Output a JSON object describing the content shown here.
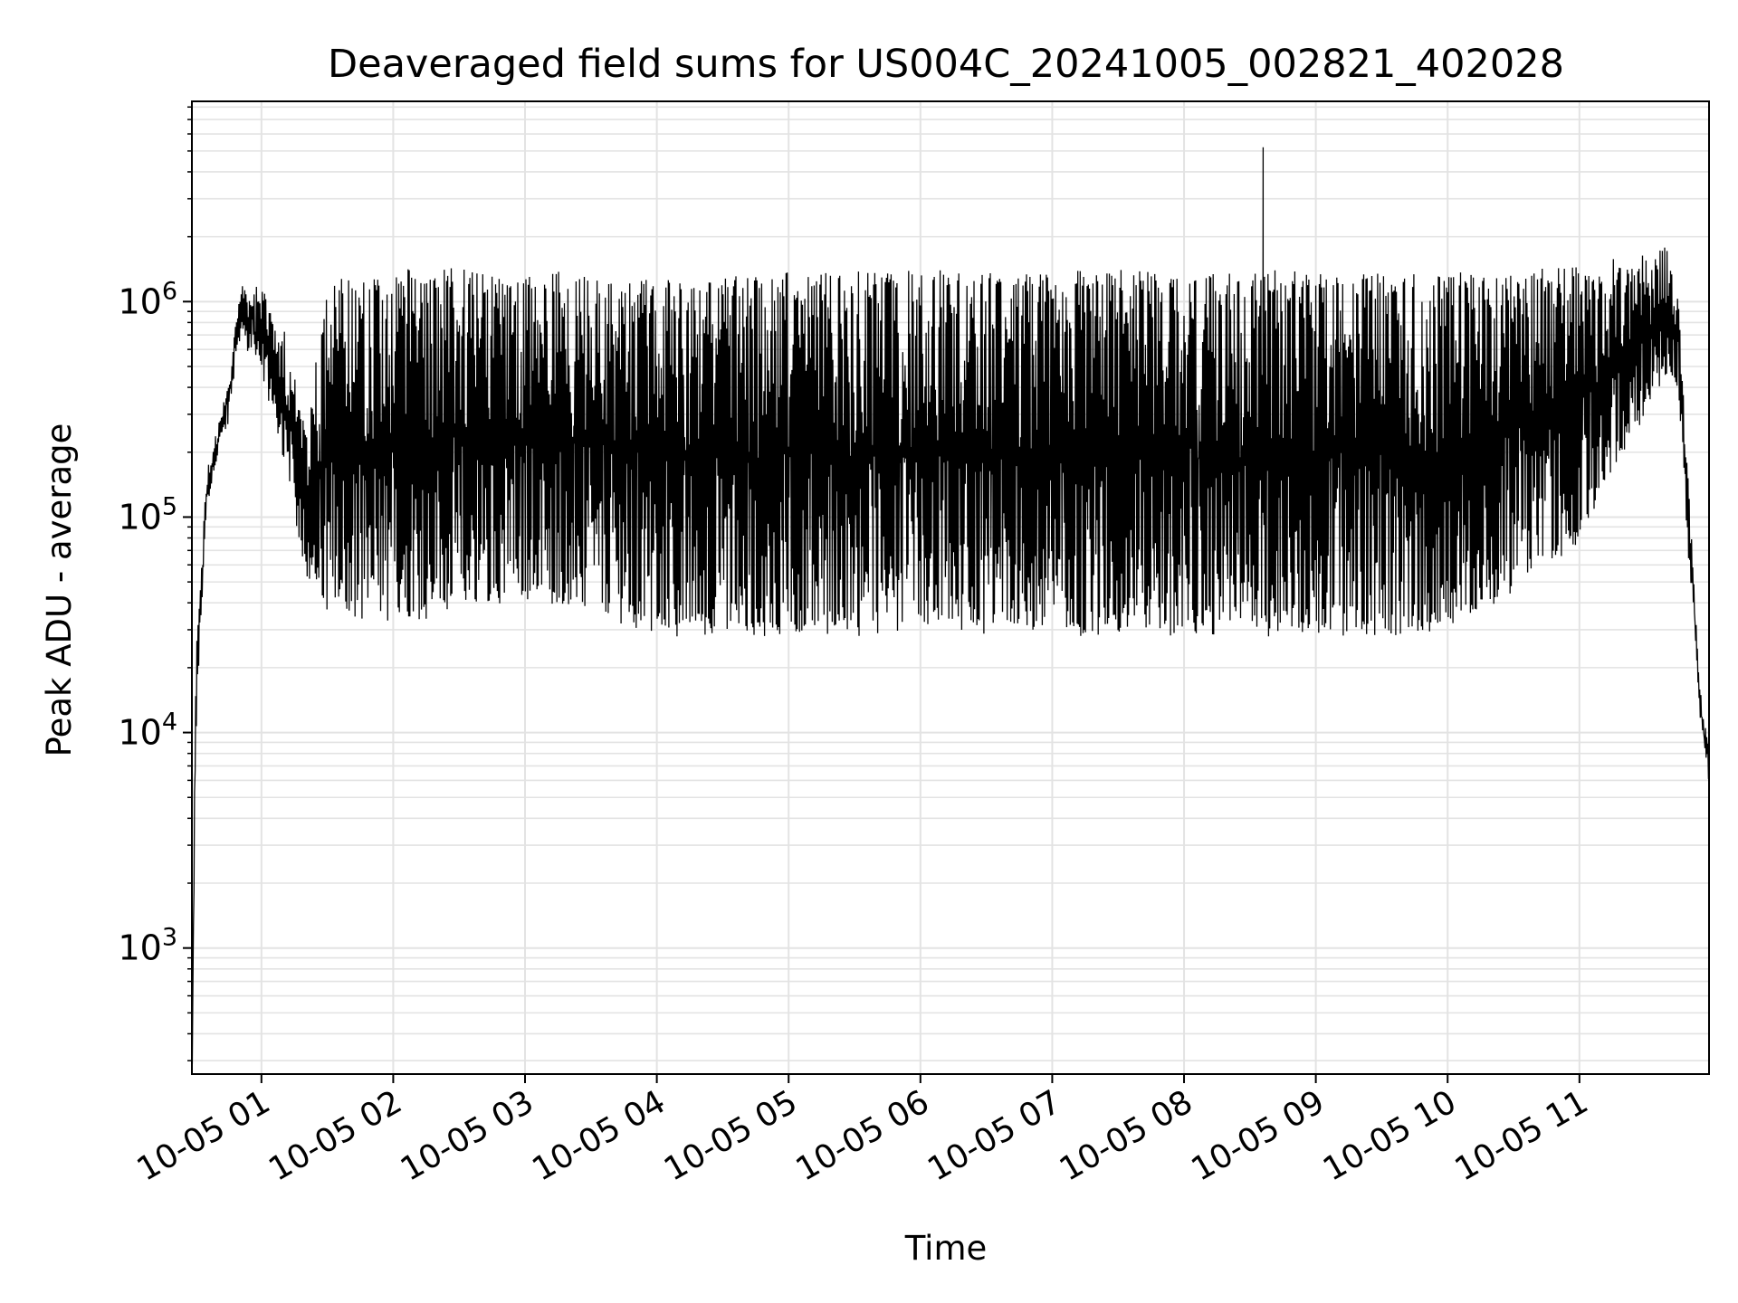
{
  "chart_data": {
    "type": "line",
    "title": "Deaveraged field sums for US004C_20241005_002821_402028",
    "xlabel": "Time",
    "ylabel": "Peak ADU - average",
    "x_axis": {
      "type": "time",
      "start": "2024-10-05T00:28:21",
      "end": "2024-10-05T11:59:00",
      "tick_values": [
        "2024-10-05T01:00",
        "2024-10-05T02:00",
        "2024-10-05T03:00",
        "2024-10-05T04:00",
        "2024-10-05T05:00",
        "2024-10-05T06:00",
        "2024-10-05T07:00",
        "2024-10-05T08:00",
        "2024-10-05T09:00",
        "2024-10-05T10:00",
        "2024-10-05T11:00"
      ],
      "tick_labels": [
        "10-05 01",
        "10-05 02",
        "10-05 03",
        "10-05 04",
        "10-05 05",
        "10-05 06",
        "10-05 07",
        "10-05 08",
        "10-05 09",
        "10-05 10",
        "10-05 11"
      ]
    },
    "y_axis": {
      "scale": "log",
      "ylim": [
        260,
        8500000
      ],
      "major_ticks": [
        1000,
        10000,
        100000,
        1000000
      ],
      "tick_labels": [
        {
          "base": "10",
          "exp": "3"
        },
        {
          "base": "10",
          "exp": "4"
        },
        {
          "base": "10",
          "exp": "5"
        },
        {
          "base": "10",
          "exp": "6"
        }
      ]
    },
    "grid": "major and minor",
    "line_color": "#000000",
    "grid_color": "#e3e3e3",
    "envelope": {
      "x": [
        "2024-10-05T00:28:30",
        "2024-10-05T00:30:00",
        "2024-10-05T00:35:00",
        "2024-10-05T00:45:00",
        "2024-10-05T00:50:00",
        "2024-10-05T01:00:00",
        "2024-10-05T01:10:00",
        "2024-10-05T01:20:00",
        "2024-10-05T01:30:00",
        "2024-10-05T02:00:00",
        "2024-10-05T02:30:00",
        "2024-10-05T03:00:00",
        "2024-10-05T03:30:00",
        "2024-10-05T04:00:00",
        "2024-10-05T05:00:00",
        "2024-10-05T06:00:00",
        "2024-10-05T07:00:00",
        "2024-10-05T08:00:00",
        "2024-10-05T09:00:00",
        "2024-10-05T10:00:00",
        "2024-10-05T11:00:00",
        "2024-10-05T11:40:00",
        "2024-10-05T11:45:00",
        "2024-10-05T11:50:00",
        "2024-10-05T11:55:00",
        "2024-10-05T11:59:00"
      ],
      "high": [
        300,
        20000,
        150000,
        400000,
        1100000,
        1100000,
        700000,
        250000,
        1200000,
        1300000,
        1350000,
        1300000,
        1250000,
        1200000,
        1300000,
        1300000,
        1300000,
        1300000,
        1300000,
        1300000,
        1350000,
        1700000,
        1000000,
        120000,
        15000,
        8000
      ],
      "low": [
        300,
        8000,
        120000,
        300000,
        700000,
        500000,
        200000,
        60000,
        35000,
        35000,
        38000,
        45000,
        40000,
        30000,
        30000,
        30000,
        30000,
        30000,
        30000,
        30000,
        80000,
        500000,
        400000,
        60000,
        12000,
        6000
      ]
    },
    "spike": {
      "x": "2024-10-05T08:36:00",
      "y": 5200000
    }
  }
}
